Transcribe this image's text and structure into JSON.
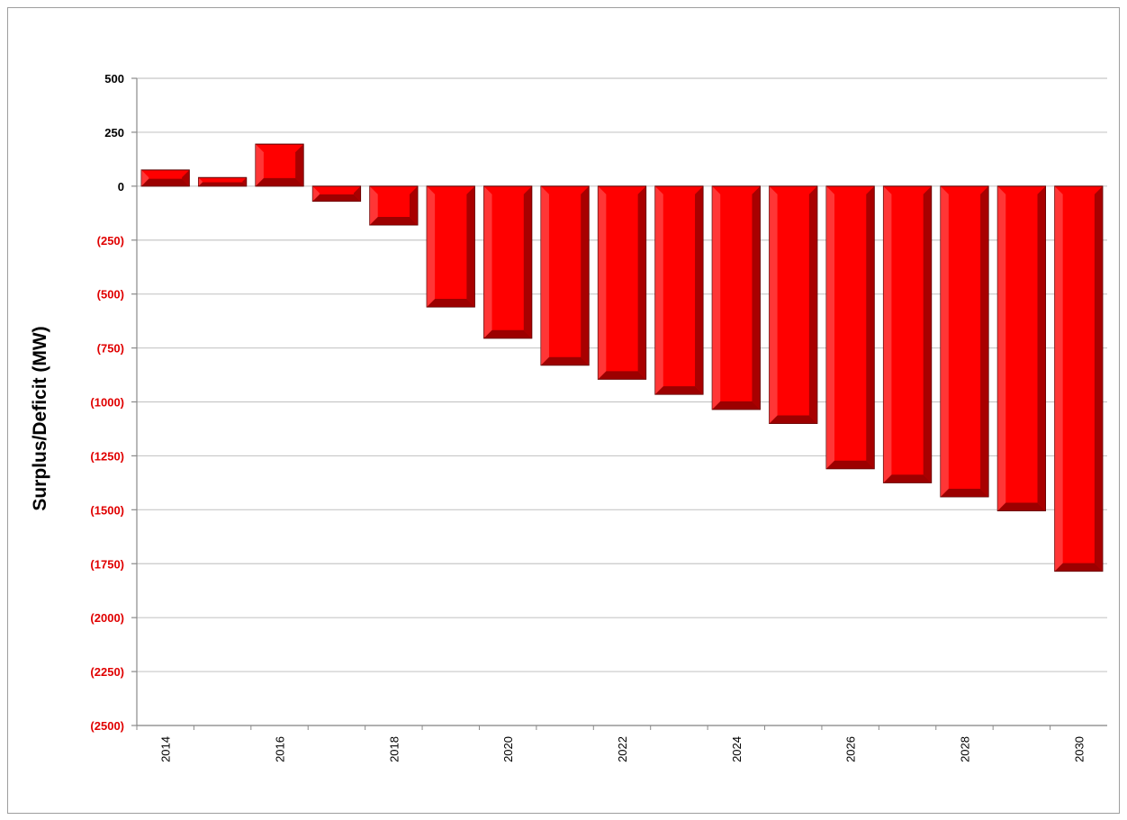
{
  "chart_data": {
    "type": "bar",
    "title": "",
    "xlabel": "",
    "ylabel": "Surplus/Deficit (MW)",
    "ylim": [
      -2500,
      500
    ],
    "yticks": [
      {
        "value": 500,
        "label": "500"
      },
      {
        "value": 250,
        "label": "250"
      },
      {
        "value": 0,
        "label": "0"
      },
      {
        "value": -250,
        "label": "(250)"
      },
      {
        "value": -500,
        "label": "(500)"
      },
      {
        "value": -750,
        "label": "(750)"
      },
      {
        "value": -1000,
        "label": "(1000)"
      },
      {
        "value": -1250,
        "label": "(1250)"
      },
      {
        "value": -1500,
        "label": "(1500)"
      },
      {
        "value": -1750,
        "label": "(1750)"
      },
      {
        "value": -2000,
        "label": "(2000)"
      },
      {
        "value": -2250,
        "label": "(2250)"
      },
      {
        "value": -2500,
        "label": "(2500)"
      }
    ],
    "categories": [
      "2014",
      "2015",
      "2016",
      "2017",
      "2018",
      "2019",
      "2020",
      "2021",
      "2022",
      "2023",
      "2024",
      "2025",
      "2026",
      "2027",
      "2028",
      "2029",
      "2030"
    ],
    "x_tick_labels": [
      "2014",
      "",
      "2016",
      "",
      "2018",
      "",
      "2020",
      "",
      "2022",
      "",
      "2024",
      "",
      "2026",
      "",
      "2028",
      "",
      "2030"
    ],
    "values": [
      75,
      40,
      195,
      -70,
      -180,
      -560,
      -705,
      -830,
      -895,
      -965,
      -1035,
      -1100,
      -1310,
      -1375,
      -1440,
      -1505,
      -1785
    ],
    "grid": true,
    "legend": "none",
    "colors": {
      "bar_fill": "#ff0000",
      "bar_dark": "#8b0000",
      "bar_edge": "#5a0000",
      "negative_label": "#e00000",
      "positive_label": "#000000",
      "grid": "#c8c8c8"
    }
  }
}
